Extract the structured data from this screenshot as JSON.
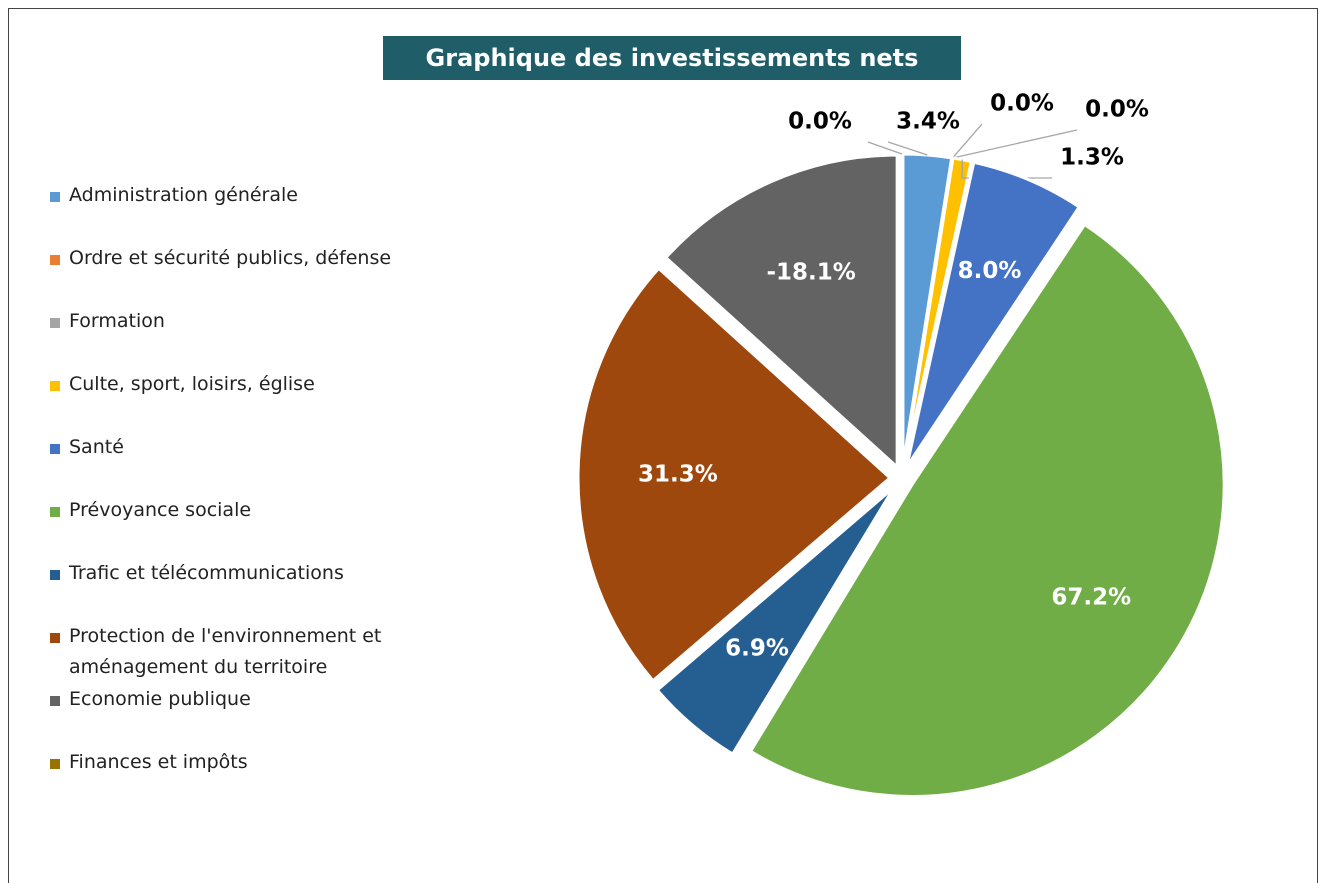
{
  "chart_data": {
    "type": "pie",
    "title": "Graphique des investissements nets",
    "categories": [
      "Administration générale",
      "Ordre et sécurité publics, défense",
      "Formation",
      "Culte, sport, loisirs, église",
      "Santé",
      "Prévoyance sociale",
      "Trafic et télécommunications",
      "Protection de l'environnement et aménagement du territoire",
      "Economie publique",
      "Finances et impôts"
    ],
    "values": [
      3.4,
      0.0,
      0.0,
      1.3,
      8.0,
      67.2,
      6.9,
      31.3,
      -18.1,
      0.0
    ],
    "value_labels": [
      "3.4%",
      "0.0%",
      "0.0%",
      "1.3%",
      "8.0%",
      "67.2%",
      "6.9%",
      "31.3%",
      "-18.1%",
      "0.0%"
    ],
    "colors": [
      "#5b9bd5",
      "#ed7d31",
      "#a5a5a5",
      "#ffc000",
      "#4472c4",
      "#70ad47",
      "#255e91",
      "#9e480e",
      "#636363",
      "#997300"
    ],
    "legend": "left"
  }
}
